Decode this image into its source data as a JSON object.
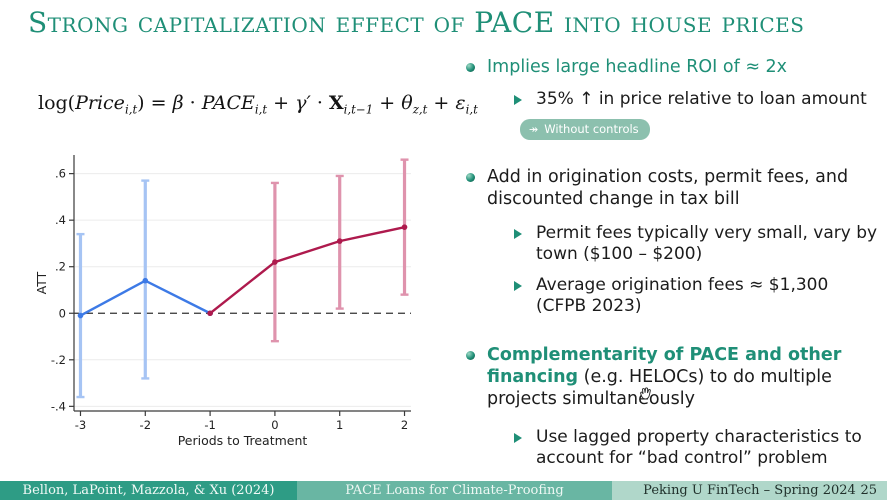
{
  "colors": {
    "accent": "#1f8f77",
    "text": "#1c1c1c",
    "badge_bg": "#8cc0ae",
    "footer_left_bg": "#2e9c85",
    "footer_left_text": "#f2faf7",
    "footer_center_bg": "#69b6a3",
    "footer_center_text": "#eef8f4",
    "footer_right_bg": "#b0d7ca",
    "footer_right_text": "#20302b",
    "blue": "#3d7ae6",
    "blue_ci": "#a6c4f4",
    "red": "#ae1a4d",
    "red_ci": "#df93ad",
    "axis": "#3a3a3a",
    "grid": "#ececec"
  },
  "title": "Strong capitalization effect of PACE into house prices",
  "formula": {
    "segments": [
      {
        "t": "log(",
        "s": "rm"
      },
      {
        "t": "Price",
        "s": "it"
      },
      {
        "t": "i,t",
        "s": "sub-it"
      },
      {
        "t": ") = ",
        "s": "rm"
      },
      {
        "t": "β",
        "s": "it"
      },
      {
        "t": " · ",
        "s": "rm"
      },
      {
        "t": "PACE",
        "s": "it"
      },
      {
        "t": "i,t",
        "s": "sub-it"
      },
      {
        "t": " + ",
        "s": "rm"
      },
      {
        "t": "γ′",
        "s": "it"
      },
      {
        "t": " · ",
        "s": "rm"
      },
      {
        "t": "X",
        "s": "bf"
      },
      {
        "t": "i,t−1",
        "s": "sub-it"
      },
      {
        "t": " + ",
        "s": "rm"
      },
      {
        "t": "θ",
        "s": "it"
      },
      {
        "t": "z,t",
        "s": "sub-it"
      },
      {
        "t": " + ",
        "s": "rm"
      },
      {
        "t": "ε",
        "s": "it"
      },
      {
        "t": "i,t",
        "s": "sub-it"
      }
    ]
  },
  "right_column": {
    "b1": {
      "text": "Implies large headline ROI of ≈ 2x"
    },
    "b1_sub1": {
      "text": "35% ↑ in price relative to loan amount"
    },
    "badge": {
      "icon": "↠",
      "label": "Without controls"
    },
    "b2": {
      "text": "Add in origination costs, permit fees, and discounted change in tax bill"
    },
    "b2_sub1": {
      "text": "Permit fees typically very small, vary by town ($100 – $200)"
    },
    "b2_sub2": {
      "text": "Average origination fees ≈ $1,300 (CFPB 2023)"
    },
    "b3": {
      "segments": [
        {
          "t": "Complementarity of PACE and other financing",
          "s": "accent-bold"
        },
        {
          "t": " (e.g. HELOCs) to do multiple projects simultaneously",
          "s": "plain"
        }
      ]
    },
    "b3_sub1": {
      "text": "Use lagged property characteristics to account for “bad control” problem"
    }
  },
  "footer": {
    "left": "Bellon, LaPoint, Mazzola, & Xu (2024)",
    "center": "PACE Loans for Climate-Proofing",
    "right": "Peking U FinTech – Spring 2024",
    "page": "25"
  },
  "chart_data": {
    "type": "line",
    "subtype": "event-study with error bars",
    "title": "",
    "xlabel": "Periods to Treatment",
    "ylabel": "ATT",
    "xticks": [
      -3,
      -2,
      -1,
      0,
      1,
      2
    ],
    "yticks": [
      0.6,
      0.4,
      0.2,
      0,
      -0.2,
      -0.4
    ],
    "ytick_labels": [
      ".6",
      ".4",
      ".2",
      "0",
      "-.2",
      "-.4"
    ],
    "xlim": [
      -3.1,
      2.1
    ],
    "ylim": [
      -0.42,
      0.68
    ],
    "zero_reference_line": "dashed",
    "grid": "faint horizontal",
    "legend": "none",
    "series": [
      {
        "name": "pre-treatment",
        "color_key": "blue",
        "ci_color_key": "blue_ci",
        "x": [
          -3,
          -2,
          -1
        ],
        "y": [
          -0.01,
          0.14,
          0.0
        ],
        "ci_low": [
          -0.36,
          -0.28,
          null
        ],
        "ci_high": [
          0.34,
          0.57,
          null
        ]
      },
      {
        "name": "post-treatment",
        "color_key": "red",
        "ci_color_key": "red_ci",
        "x": [
          -1,
          0,
          1,
          2
        ],
        "y": [
          0.0,
          0.22,
          0.31,
          0.37
        ],
        "ci_low": [
          null,
          -0.12,
          0.02,
          0.08
        ],
        "ci_high": [
          null,
          0.56,
          0.59,
          0.66
        ]
      }
    ]
  }
}
